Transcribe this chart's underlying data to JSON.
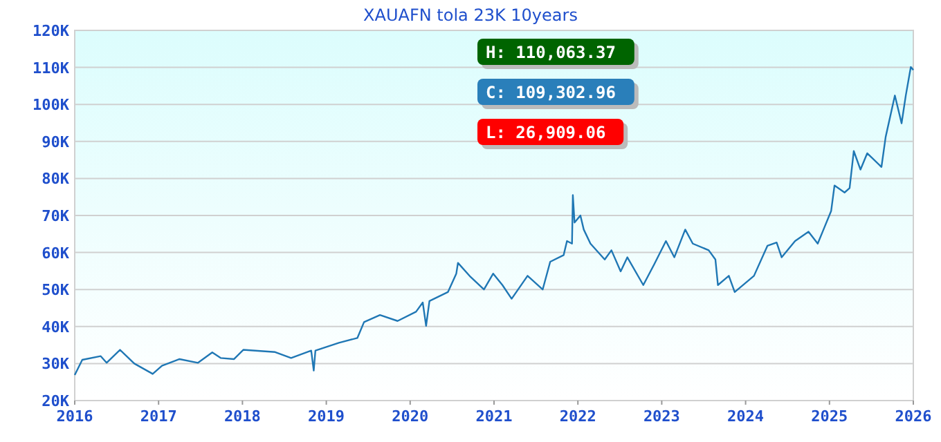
{
  "chart_data": {
    "type": "line",
    "title": "XAUAFN tola 23K 10years",
    "x": [
      2016.0,
      2016.09,
      2016.31,
      2016.38,
      2016.54,
      2016.71,
      2016.93,
      2017.04,
      2017.25,
      2017.47,
      2017.64,
      2017.74,
      2017.9,
      2018.01,
      2018.39,
      2018.58,
      2018.82,
      2018.85,
      2018.87,
      2019.15,
      2019.37,
      2019.45,
      2019.64,
      2019.85,
      2020.07,
      2020.15,
      2020.19,
      2020.23,
      2020.45,
      2020.55,
      2020.57,
      2020.72,
      2020.88,
      2020.99,
      2021.1,
      2021.21,
      2021.4,
      2021.58,
      2021.67,
      2021.83,
      2021.87,
      2021.93,
      2021.94,
      2021.96,
      2022.03,
      2022.07,
      2022.15,
      2022.32,
      2022.4,
      2022.51,
      2022.59,
      2022.78,
      2022.91,
      2023.05,
      2023.15,
      2023.28,
      2023.37,
      2023.56,
      2023.64,
      2023.67,
      2023.8,
      2023.87,
      2024.1,
      2024.26,
      2024.37,
      2024.43,
      2024.59,
      2024.75,
      2024.86,
      2024.94,
      2025.02,
      2025.06,
      2025.18,
      2025.24,
      2025.29,
      2025.37,
      2025.45,
      2025.62,
      2025.67,
      2025.78,
      2025.86,
      2025.91,
      2025.97,
      2026.0
    ],
    "series": [
      {
        "color": "#1f77b4",
        "values": [
          26900,
          31000,
          32000,
          30200,
          33700,
          30000,
          27200,
          29400,
          31200,
          30200,
          33000,
          31500,
          31200,
          33700,
          33100,
          31500,
          33500,
          28100,
          33500,
          35600,
          36900,
          41200,
          43100,
          41500,
          44000,
          46500,
          40200,
          46900,
          49300,
          54300,
          57200,
          53400,
          50000,
          54300,
          51200,
          47500,
          53700,
          50000,
          57500,
          59300,
          63100,
          62400,
          75500,
          68100,
          70000,
          66200,
          62400,
          58100,
          60600,
          54900,
          58700,
          51200,
          56800,
          63100,
          58700,
          66200,
          62400,
          60600,
          58100,
          51200,
          53700,
          49300,
          53700,
          61800,
          62700,
          58700,
          63100,
          65600,
          62400,
          66800,
          71200,
          78100,
          76200,
          77400,
          87400,
          82400,
          86800,
          83100,
          91200,
          102400,
          94900,
          102400,
          110100,
          109300
        ]
      }
    ],
    "xlim": [
      2016,
      2026
    ],
    "xticks": [
      2016,
      2017,
      2018,
      2019,
      2020,
      2021,
      2022,
      2023,
      2024,
      2025,
      2026
    ],
    "ylim": [
      20000,
      120000
    ],
    "yticks": [
      {
        "value": 20000,
        "label": "20K"
      },
      {
        "value": 30000,
        "label": "30K"
      },
      {
        "value": 40000,
        "label": "40K"
      },
      {
        "value": 50000,
        "label": "50K"
      },
      {
        "value": 60000,
        "label": "60K"
      },
      {
        "value": 70000,
        "label": "70K"
      },
      {
        "value": 80000,
        "label": "80K"
      },
      {
        "value": 90000,
        "label": "90K"
      },
      {
        "value": 100000,
        "label": "100K"
      },
      {
        "value": 110000,
        "label": "110K"
      },
      {
        "value": 120000,
        "label": "120K"
      }
    ],
    "grid": "y",
    "line_style": "solid",
    "marker": "none",
    "annotations": [
      "H: 110,063.37",
      "C: 109,302.96",
      "L: 26,909.06"
    ]
  }
}
